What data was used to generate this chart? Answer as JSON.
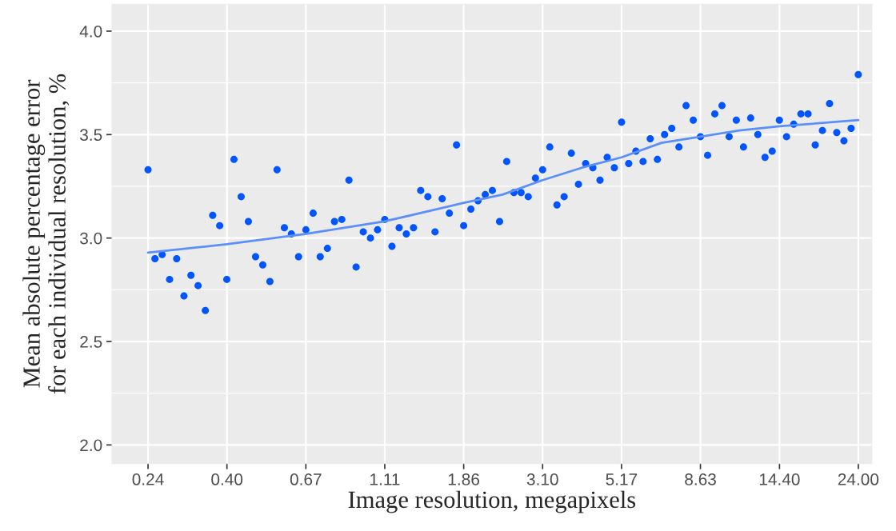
{
  "chart_data": {
    "type": "scatter",
    "xlabel": "Image resolution, megapixels",
    "ylabel": "Mean absolute percentage error\nfor each individual resolution, %",
    "log": "x",
    "xlim": [
      0.19,
      26.2
    ],
    "ylim": [
      1.91,
      4.13
    ],
    "xticks": [
      {
        "value": 0.24,
        "label": "0.24"
      },
      {
        "value": 0.40034,
        "label": "0.40"
      },
      {
        "value": 0.66781,
        "label": "0.67"
      },
      {
        "value": 1.11397,
        "label": "1.11"
      },
      {
        "value": 1.85822,
        "label": "1.86"
      },
      {
        "value": 3.09968,
        "label": "3.10"
      },
      {
        "value": 5.17064,
        "label": "5.17"
      },
      {
        "value": 8.62519,
        "label": "8.63"
      },
      {
        "value": 14.4,
        "label": "14.40"
      },
      {
        "value": 24.0,
        "label": "24.00"
      }
    ],
    "yticks": [
      {
        "value": 2.0,
        "label": "2.0"
      },
      {
        "value": 2.5,
        "label": "2.5"
      },
      {
        "value": 3.0,
        "label": "3.0"
      },
      {
        "value": 3.5,
        "label": "3.5"
      },
      {
        "value": 4.0,
        "label": "4.0"
      }
    ],
    "grid": true,
    "marker": "circle",
    "series": [
      {
        "color": "#0055ff",
        "x": [
          0.24,
          0.251,
          0.263,
          0.276,
          0.289,
          0.303,
          0.317,
          0.332,
          0.348,
          0.365,
          0.382,
          0.4,
          0.419,
          0.439,
          0.46,
          0.482,
          0.505,
          0.529,
          0.554,
          0.581,
          0.608,
          0.637,
          0.668,
          0.7,
          0.733,
          0.768,
          0.804,
          0.843,
          0.883,
          0.925,
          0.969,
          1.015,
          1.063,
          1.114,
          1.167,
          1.223,
          1.281,
          1.342,
          1.406,
          1.473,
          1.543,
          1.616,
          1.693,
          1.774,
          1.858,
          1.947,
          2.039,
          2.137,
          2.238,
          2.345,
          2.456,
          2.573,
          2.696,
          2.824,
          2.959,
          3.1,
          3.247,
          3.402,
          3.564,
          3.734,
          3.911,
          4.098,
          4.293,
          4.497,
          4.711,
          4.936,
          5.171,
          5.417,
          5.675,
          5.945,
          6.228,
          6.525,
          6.835,
          7.161,
          7.502,
          7.859,
          8.233,
          8.625,
          9.036,
          9.466,
          9.917,
          10.389,
          10.884,
          11.402,
          11.945,
          12.513,
          13.11,
          13.734,
          14.388,
          15.073,
          15.791,
          16.543,
          17.33,
          18.156,
          19.02,
          19.926,
          20.874,
          21.869,
          22.91,
          24.0
        ],
        "values": [
          3.33,
          2.9,
          2.92,
          2.8,
          2.9,
          2.72,
          2.82,
          2.77,
          2.65,
          3.11,
          3.06,
          2.8,
          3.38,
          3.2,
          3.08,
          2.91,
          2.87,
          2.79,
          3.33,
          3.05,
          3.02,
          2.91,
          3.04,
          3.12,
          2.91,
          2.95,
          3.08,
          3.09,
          3.28,
          2.86,
          3.03,
          3.0,
          3.04,
          3.09,
          2.96,
          3.05,
          3.02,
          3.05,
          3.23,
          3.2,
          3.03,
          3.19,
          3.12,
          3.45,
          3.06,
          3.14,
          3.18,
          3.21,
          3.23,
          3.08,
          3.37,
          3.22,
          3.22,
          3.2,
          3.29,
          3.33,
          3.44,
          3.16,
          3.2,
          3.41,
          3.26,
          3.36,
          3.34,
          3.28,
          3.39,
          3.34,
          3.56,
          3.36,
          3.42,
          3.37,
          3.48,
          3.38,
          3.5,
          3.53,
          3.44,
          3.64,
          3.57,
          3.49,
          3.4,
          3.6,
          3.64,
          3.49,
          3.57,
          3.44,
          3.58,
          3.5,
          3.39,
          3.42,
          3.57,
          3.49,
          3.55,
          3.6,
          3.6,
          3.45,
          3.52,
          3.65,
          3.51,
          3.47,
          3.53,
          3.79
        ]
      },
      {
        "type": "line",
        "color": "#5b8ff9",
        "line_style": "solid",
        "marker": "none",
        "x": [
          0.24,
          0.4,
          0.67,
          1.11,
          1.86,
          2.39,
          3.1,
          4.0,
          5.17,
          6.7,
          8.63,
          11.1,
          14.4,
          24.0
        ],
        "values": [
          2.93,
          2.97,
          3.02,
          3.08,
          3.17,
          3.21,
          3.28,
          3.34,
          3.39,
          3.46,
          3.49,
          3.52,
          3.54,
          3.57
        ]
      }
    ]
  }
}
